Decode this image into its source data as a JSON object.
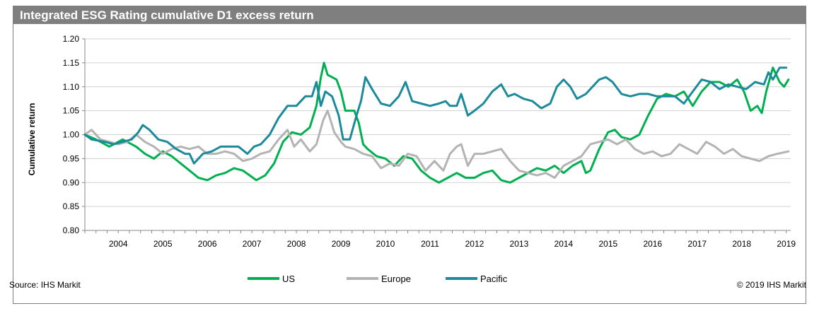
{
  "header": {
    "title": "Integrated ESG Rating cumulative D1 excess return"
  },
  "footer": {
    "source": "Source: IHS Markit",
    "copyright": "© 2019 IHS Markit"
  },
  "chart_data": {
    "type": "line",
    "title": "Integrated ESG Rating cumulative D1 excess return",
    "xlabel": "",
    "ylabel": "Cumulative return",
    "xlim": [
      2003.75,
      2019.6
    ],
    "ylim": [
      0.8,
      1.2
    ],
    "yticks": [
      "0.80",
      "0.85",
      "0.90",
      "0.95",
      "1.00",
      "1.05",
      "1.10",
      "1.15",
      "1.20"
    ],
    "xticks": [
      "2004",
      "2005",
      "2006",
      "2007",
      "2008",
      "2009",
      "2010",
      "2011",
      "2012",
      "2013",
      "2014",
      "2015",
      "2016",
      "2017",
      "2018",
      "2019"
    ],
    "grid": "horizontal",
    "legend_position": "bottom",
    "series": [
      {
        "name": "US",
        "color": "#00b050",
        "points": [
          [
            2003.75,
            1.0
          ],
          [
            2004.0,
            0.99
          ],
          [
            2004.3,
            0.975
          ],
          [
            2004.6,
            0.99
          ],
          [
            2004.9,
            0.975
          ],
          [
            2005.1,
            0.96
          ],
          [
            2005.3,
            0.95
          ],
          [
            2005.5,
            0.965
          ],
          [
            2005.7,
            0.955
          ],
          [
            2005.9,
            0.94
          ],
          [
            2006.1,
            0.925
          ],
          [
            2006.3,
            0.91
          ],
          [
            2006.5,
            0.905
          ],
          [
            2006.7,
            0.915
          ],
          [
            2006.9,
            0.92
          ],
          [
            2007.1,
            0.93
          ],
          [
            2007.3,
            0.925
          ],
          [
            2007.45,
            0.915
          ],
          [
            2007.6,
            0.905
          ],
          [
            2007.8,
            0.915
          ],
          [
            2008.0,
            0.94
          ],
          [
            2008.2,
            0.985
          ],
          [
            2008.4,
            1.005
          ],
          [
            2008.6,
            1.0
          ],
          [
            2008.8,
            1.015
          ],
          [
            2008.95,
            1.06
          ],
          [
            2009.05,
            1.12
          ],
          [
            2009.12,
            1.15
          ],
          [
            2009.2,
            1.125
          ],
          [
            2009.4,
            1.115
          ],
          [
            2009.5,
            1.09
          ],
          [
            2009.6,
            1.05
          ],
          [
            2009.8,
            1.05
          ],
          [
            2009.9,
            1.025
          ],
          [
            2010.0,
            0.98
          ],
          [
            2010.1,
            0.97
          ],
          [
            2010.3,
            0.955
          ],
          [
            2010.5,
            0.95
          ],
          [
            2010.7,
            0.935
          ],
          [
            2010.9,
            0.955
          ],
          [
            2011.1,
            0.95
          ],
          [
            2011.3,
            0.925
          ],
          [
            2011.5,
            0.91
          ],
          [
            2011.7,
            0.9
          ],
          [
            2011.9,
            0.91
          ],
          [
            2012.1,
            0.92
          ],
          [
            2012.3,
            0.91
          ],
          [
            2012.5,
            0.91
          ],
          [
            2012.7,
            0.92
          ],
          [
            2012.9,
            0.925
          ],
          [
            2013.1,
            0.905
          ],
          [
            2013.3,
            0.9
          ],
          [
            2013.5,
            0.91
          ],
          [
            2013.7,
            0.92
          ],
          [
            2013.9,
            0.93
          ],
          [
            2014.1,
            0.925
          ],
          [
            2014.3,
            0.935
          ],
          [
            2014.5,
            0.92
          ],
          [
            2014.7,
            0.935
          ],
          [
            2014.9,
            0.945
          ],
          [
            2015.0,
            0.92
          ],
          [
            2015.1,
            0.925
          ],
          [
            2015.3,
            0.97
          ],
          [
            2015.5,
            1.005
          ],
          [
            2015.65,
            1.01
          ],
          [
            2015.8,
            0.995
          ],
          [
            2016.0,
            0.99
          ],
          [
            2016.2,
            1.0
          ],
          [
            2016.4,
            1.04
          ],
          [
            2016.6,
            1.075
          ],
          [
            2016.8,
            1.085
          ],
          [
            2017.0,
            1.08
          ],
          [
            2017.2,
            1.09
          ],
          [
            2017.4,
            1.06
          ],
          [
            2017.6,
            1.09
          ],
          [
            2017.8,
            1.11
          ],
          [
            2018.0,
            1.11
          ],
          [
            2018.2,
            1.1
          ],
          [
            2018.4,
            1.115
          ],
          [
            2018.55,
            1.09
          ],
          [
            2018.7,
            1.05
          ],
          [
            2018.85,
            1.06
          ],
          [
            2018.95,
            1.045
          ],
          [
            2019.05,
            1.09
          ],
          [
            2019.2,
            1.14
          ],
          [
            2019.35,
            1.11
          ],
          [
            2019.45,
            1.1
          ],
          [
            2019.55,
            1.115
          ]
        ]
      },
      {
        "name": "Europe",
        "color": "#b3b3b3",
        "points": [
          [
            2003.75,
            1.0
          ],
          [
            2003.9,
            1.01
          ],
          [
            2004.1,
            0.99
          ],
          [
            2004.3,
            0.985
          ],
          [
            2004.5,
            0.98
          ],
          [
            2004.7,
            0.985
          ],
          [
            2004.9,
            1.0
          ],
          [
            2005.1,
            0.985
          ],
          [
            2005.3,
            0.975
          ],
          [
            2005.5,
            0.96
          ],
          [
            2005.7,
            0.97
          ],
          [
            2005.9,
            0.975
          ],
          [
            2006.1,
            0.97
          ],
          [
            2006.3,
            0.975
          ],
          [
            2006.5,
            0.96
          ],
          [
            2006.7,
            0.96
          ],
          [
            2006.9,
            0.965
          ],
          [
            2007.1,
            0.96
          ],
          [
            2007.3,
            0.945
          ],
          [
            2007.5,
            0.95
          ],
          [
            2007.7,
            0.96
          ],
          [
            2007.9,
            0.965
          ],
          [
            2008.1,
            0.99
          ],
          [
            2008.3,
            1.01
          ],
          [
            2008.45,
            0.975
          ],
          [
            2008.6,
            0.99
          ],
          [
            2008.8,
            0.965
          ],
          [
            2008.95,
            0.98
          ],
          [
            2009.1,
            1.03
          ],
          [
            2009.2,
            1.05
          ],
          [
            2009.35,
            1.005
          ],
          [
            2009.5,
            0.985
          ],
          [
            2009.6,
            0.975
          ],
          [
            2009.8,
            0.97
          ],
          [
            2010.0,
            0.96
          ],
          [
            2010.2,
            0.955
          ],
          [
            2010.4,
            0.93
          ],
          [
            2010.6,
            0.94
          ],
          [
            2010.8,
            0.935
          ],
          [
            2011.0,
            0.96
          ],
          [
            2011.2,
            0.955
          ],
          [
            2011.4,
            0.925
          ],
          [
            2011.6,
            0.945
          ],
          [
            2011.8,
            0.925
          ],
          [
            2011.95,
            0.96
          ],
          [
            2012.1,
            0.975
          ],
          [
            2012.2,
            0.98
          ],
          [
            2012.35,
            0.935
          ],
          [
            2012.5,
            0.96
          ],
          [
            2012.7,
            0.96
          ],
          [
            2012.9,
            0.965
          ],
          [
            2013.1,
            0.97
          ],
          [
            2013.3,
            0.945
          ],
          [
            2013.5,
            0.925
          ],
          [
            2013.7,
            0.92
          ],
          [
            2013.9,
            0.915
          ],
          [
            2014.1,
            0.92
          ],
          [
            2014.3,
            0.91
          ],
          [
            2014.5,
            0.935
          ],
          [
            2014.7,
            0.945
          ],
          [
            2014.9,
            0.955
          ],
          [
            2015.1,
            0.98
          ],
          [
            2015.3,
            0.985
          ],
          [
            2015.5,
            0.99
          ],
          [
            2015.7,
            0.98
          ],
          [
            2015.9,
            0.99
          ],
          [
            2016.1,
            0.97
          ],
          [
            2016.3,
            0.96
          ],
          [
            2016.5,
            0.965
          ],
          [
            2016.7,
            0.955
          ],
          [
            2016.9,
            0.96
          ],
          [
            2017.1,
            0.98
          ],
          [
            2017.3,
            0.97
          ],
          [
            2017.5,
            0.96
          ],
          [
            2017.7,
            0.985
          ],
          [
            2017.9,
            0.975
          ],
          [
            2018.1,
            0.96
          ],
          [
            2018.3,
            0.97
          ],
          [
            2018.5,
            0.955
          ],
          [
            2018.7,
            0.95
          ],
          [
            2018.9,
            0.945
          ],
          [
            2019.1,
            0.955
          ],
          [
            2019.3,
            0.96
          ],
          [
            2019.55,
            0.965
          ]
        ]
      },
      {
        "name": "Pacific",
        "color": "#1b8a9a",
        "points": [
          [
            2003.75,
            1.0
          ],
          [
            2003.9,
            0.99
          ],
          [
            2004.2,
            0.985
          ],
          [
            2004.4,
            0.98
          ],
          [
            2004.6,
            0.985
          ],
          [
            2004.8,
            0.99
          ],
          [
            2004.95,
            1.005
          ],
          [
            2005.05,
            1.02
          ],
          [
            2005.2,
            1.01
          ],
          [
            2005.4,
            0.99
          ],
          [
            2005.6,
            0.985
          ],
          [
            2005.8,
            0.97
          ],
          [
            2006.0,
            0.96
          ],
          [
            2006.1,
            0.96
          ],
          [
            2006.2,
            0.94
          ],
          [
            2006.4,
            0.96
          ],
          [
            2006.6,
            0.965
          ],
          [
            2006.8,
            0.975
          ],
          [
            2007.0,
            0.975
          ],
          [
            2007.2,
            0.975
          ],
          [
            2007.4,
            0.96
          ],
          [
            2007.55,
            0.975
          ],
          [
            2007.7,
            0.98
          ],
          [
            2007.9,
            1.0
          ],
          [
            2008.1,
            1.035
          ],
          [
            2008.3,
            1.06
          ],
          [
            2008.5,
            1.06
          ],
          [
            2008.7,
            1.08
          ],
          [
            2008.85,
            1.08
          ],
          [
            2008.95,
            1.11
          ],
          [
            2009.05,
            1.06
          ],
          [
            2009.15,
            1.09
          ],
          [
            2009.3,
            1.08
          ],
          [
            2009.45,
            1.04
          ],
          [
            2009.55,
            0.99
          ],
          [
            2009.7,
            0.99
          ],
          [
            2009.85,
            1.04
          ],
          [
            2009.95,
            1.07
          ],
          [
            2010.05,
            1.12
          ],
          [
            2010.2,
            1.095
          ],
          [
            2010.4,
            1.065
          ],
          [
            2010.6,
            1.06
          ],
          [
            2010.8,
            1.08
          ],
          [
            2010.95,
            1.11
          ],
          [
            2011.1,
            1.07
          ],
          [
            2011.3,
            1.065
          ],
          [
            2011.5,
            1.06
          ],
          [
            2011.7,
            1.065
          ],
          [
            2011.85,
            1.07
          ],
          [
            2011.95,
            1.06
          ],
          [
            2012.1,
            1.06
          ],
          [
            2012.2,
            1.085
          ],
          [
            2012.35,
            1.04
          ],
          [
            2012.5,
            1.05
          ],
          [
            2012.7,
            1.065
          ],
          [
            2012.9,
            1.09
          ],
          [
            2013.1,
            1.105
          ],
          [
            2013.25,
            1.08
          ],
          [
            2013.4,
            1.085
          ],
          [
            2013.6,
            1.075
          ],
          [
            2013.8,
            1.07
          ],
          [
            2014.0,
            1.055
          ],
          [
            2014.2,
            1.065
          ],
          [
            2014.35,
            1.1
          ],
          [
            2014.5,
            1.115
          ],
          [
            2014.65,
            1.1
          ],
          [
            2014.8,
            1.075
          ],
          [
            2015.0,
            1.085
          ],
          [
            2015.15,
            1.1
          ],
          [
            2015.3,
            1.115
          ],
          [
            2015.45,
            1.12
          ],
          [
            2015.6,
            1.11
          ],
          [
            2015.8,
            1.085
          ],
          [
            2016.0,
            1.08
          ],
          [
            2016.2,
            1.085
          ],
          [
            2016.4,
            1.085
          ],
          [
            2016.6,
            1.08
          ],
          [
            2016.8,
            1.08
          ],
          [
            2017.0,
            1.08
          ],
          [
            2017.2,
            1.065
          ],
          [
            2017.4,
            1.09
          ],
          [
            2017.6,
            1.115
          ],
          [
            2017.8,
            1.11
          ],
          [
            2018.0,
            1.095
          ],
          [
            2018.2,
            1.105
          ],
          [
            2018.4,
            1.1
          ],
          [
            2018.6,
            1.095
          ],
          [
            2018.8,
            1.11
          ],
          [
            2019.0,
            1.105
          ],
          [
            2019.1,
            1.13
          ],
          [
            2019.2,
            1.115
          ],
          [
            2019.35,
            1.14
          ],
          [
            2019.5,
            1.14
          ]
        ]
      }
    ]
  }
}
